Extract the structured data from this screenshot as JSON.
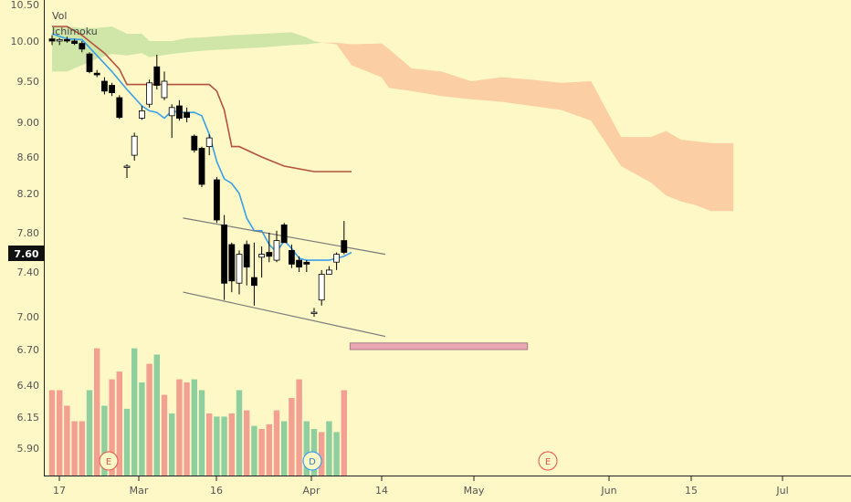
{
  "legend": {
    "vol_label": "Vol",
    "ichimoku_label": "Ichimoku"
  },
  "colors": {
    "background": "#fdf8c6",
    "up_volume": "#8fcf9f",
    "down_volume": "#f2a091",
    "tenkan": "#3aa0e8",
    "kijun": "#b5523c",
    "kumo_bull": "#cfe6a8",
    "kumo_bear": "#fbcfa3",
    "zone_fill": "#e9a7b6",
    "zone_stroke": "#a67a88",
    "trendline": "#7a7a7a"
  },
  "price_badge": "7.60",
  "chart_data": {
    "type": "candlestick",
    "y_ticks": [
      "10.50",
      "10.00",
      "9.50",
      "9.00",
      "8.60",
      "8.20",
      "7.80",
      "7.40",
      "7.00",
      "6.70",
      "6.40",
      "6.15",
      "5.90"
    ],
    "x_ticks": [
      "17",
      "Mar",
      "16",
      "Apr",
      "14",
      "May",
      "Jun",
      "15",
      "Jul"
    ],
    "events": [
      {
        "label": "E",
        "date": "Feb 26"
      },
      {
        "label": "D",
        "date": "Apr 1"
      },
      {
        "label": "E",
        "date": "May 20"
      }
    ],
    "candles": [
      {
        "date": "Feb 17",
        "open": 10.03,
        "high": 10.08,
        "low": 9.95,
        "close": 10.0
      },
      {
        "date": "Feb 18",
        "open": 10.0,
        "high": 10.04,
        "low": 9.95,
        "close": 10.02
      },
      {
        "date": "Feb 19",
        "open": 10.02,
        "high": 10.06,
        "low": 9.98,
        "close": 10.01
      },
      {
        "date": "Feb 20",
        "open": 10.0,
        "high": 10.03,
        "low": 9.95,
        "close": 9.97
      },
      {
        "date": "Feb 21",
        "open": 9.97,
        "high": 10.0,
        "low": 9.86,
        "close": 9.9
      },
      {
        "date": "Feb 24",
        "open": 9.84,
        "high": 9.86,
        "low": 9.6,
        "close": 9.62
      },
      {
        "date": "Feb 25",
        "open": 9.6,
        "high": 9.64,
        "low": 9.55,
        "close": 9.58
      },
      {
        "date": "Feb 26",
        "open": 9.5,
        "high": 9.55,
        "low": 9.34,
        "close": 9.38
      },
      {
        "date": "Feb 27",
        "open": 9.45,
        "high": 9.48,
        "low": 9.32,
        "close": 9.36
      },
      {
        "date": "Feb 28",
        "open": 9.3,
        "high": 9.33,
        "low": 9.04,
        "close": 9.06
      },
      {
        "date": "Mar 2",
        "open": 8.5,
        "high": 8.52,
        "low": 8.37,
        "close": 8.5
      },
      {
        "date": "Mar 3",
        "open": 8.62,
        "high": 8.88,
        "low": 8.56,
        "close": 8.84
      },
      {
        "date": "Mar 4",
        "open": 9.05,
        "high": 9.2,
        "low": 9.03,
        "close": 9.14
      },
      {
        "date": "Mar 5",
        "open": 9.22,
        "high": 9.52,
        "low": 9.18,
        "close": 9.48
      },
      {
        "date": "Mar 6",
        "open": 9.68,
        "high": 9.83,
        "low": 9.4,
        "close": 9.45
      },
      {
        "date": "Mar 9",
        "open": 9.3,
        "high": 9.62,
        "low": 9.27,
        "close": 9.5
      },
      {
        "date": "Mar 10",
        "open": 9.08,
        "high": 9.22,
        "low": 8.82,
        "close": 9.18
      },
      {
        "date": "Mar 11",
        "open": 9.2,
        "high": 9.27,
        "low": 9.02,
        "close": 9.05
      },
      {
        "date": "Mar 12",
        "open": 9.12,
        "high": 9.18,
        "low": 9.0,
        "close": 9.06
      },
      {
        "date": "Mar 13",
        "open": 8.84,
        "high": 8.86,
        "low": 8.65,
        "close": 8.68
      },
      {
        "date": "Mar 16",
        "open": 8.7,
        "high": 8.72,
        "low": 8.27,
        "close": 8.3
      },
      {
        "date": "Mar 17",
        "open": 8.72,
        "high": 8.86,
        "low": 8.62,
        "close": 8.82
      },
      {
        "date": "Mar 18",
        "open": 8.35,
        "high": 8.38,
        "low": 7.9,
        "close": 7.93
      },
      {
        "date": "Mar 19",
        "open": 7.88,
        "high": 7.98,
        "low": 7.15,
        "close": 7.3
      },
      {
        "date": "Mar 20",
        "open": 7.68,
        "high": 7.7,
        "low": 7.22,
        "close": 7.32
      },
      {
        "date": "Mar 23",
        "open": 7.3,
        "high": 7.62,
        "low": 7.2,
        "close": 7.58
      },
      {
        "date": "Mar 24",
        "open": 7.68,
        "high": 7.72,
        "low": 7.28,
        "close": 7.45
      },
      {
        "date": "Mar 25",
        "open": 7.35,
        "high": 7.7,
        "low": 7.1,
        "close": 7.28
      },
      {
        "date": "Mar 26",
        "open": 7.55,
        "high": 7.66,
        "low": 7.35,
        "close": 7.58
      },
      {
        "date": "Mar 27",
        "open": 7.6,
        "high": 7.8,
        "low": 7.5,
        "close": 7.56
      },
      {
        "date": "Mar 30",
        "open": 7.52,
        "high": 7.82,
        "low": 7.5,
        "close": 7.72
      },
      {
        "date": "Mar 31",
        "open": 7.88,
        "high": 7.9,
        "low": 7.7,
        "close": 7.7
      },
      {
        "date": "Apr 1",
        "open": 7.62,
        "high": 7.68,
        "low": 7.44,
        "close": 7.48
      },
      {
        "date": "Apr 2",
        "open": 7.52,
        "high": 7.56,
        "low": 7.4,
        "close": 7.45
      },
      {
        "date": "Apr 3",
        "open": 7.5,
        "high": 7.52,
        "low": 7.4,
        "close": 7.48
      },
      {
        "date": "Apr 6",
        "open": 7.04,
        "high": 7.08,
        "low": 7.0,
        "close": 7.04
      },
      {
        "date": "Apr 7",
        "open": 7.15,
        "high": 7.42,
        "low": 7.1,
        "close": 7.38
      },
      {
        "date": "Apr 8",
        "open": 7.38,
        "high": 7.46,
        "low": 7.38,
        "close": 7.42
      },
      {
        "date": "Apr 9",
        "open": 7.5,
        "high": 7.6,
        "low": 7.42,
        "close": 7.58
      },
      {
        "date": "Apr 10",
        "open": 7.72,
        "high": 7.92,
        "low": 7.58,
        "close": 7.6
      }
    ],
    "volume": [
      [
        0.55,
        "d"
      ],
      [
        0.55,
        "d"
      ],
      [
        0.45,
        "d"
      ],
      [
        0.35,
        "d"
      ],
      [
        0.35,
        "d"
      ],
      [
        0.55,
        "u"
      ],
      [
        0.82,
        "d"
      ],
      [
        0.45,
        "u"
      ],
      [
        0.62,
        "d"
      ],
      [
        0.67,
        "d"
      ],
      [
        0.43,
        "u"
      ],
      [
        0.82,
        "u"
      ],
      [
        0.6,
        "u"
      ],
      [
        0.72,
        "d"
      ],
      [
        0.78,
        "u"
      ],
      [
        0.52,
        "d"
      ],
      [
        0.4,
        "u"
      ],
      [
        0.62,
        "d"
      ],
      [
        0.6,
        "d"
      ],
      [
        0.62,
        "u"
      ],
      [
        0.55,
        "u"
      ],
      [
        0.4,
        "d"
      ],
      [
        0.38,
        "u"
      ],
      [
        0.38,
        "u"
      ],
      [
        0.4,
        "d"
      ],
      [
        0.55,
        "u"
      ],
      [
        0.42,
        "d"
      ],
      [
        0.32,
        "u"
      ],
      [
        0.3,
        "d"
      ],
      [
        0.33,
        "d"
      ],
      [
        0.42,
        "d"
      ],
      [
        0.35,
        "u"
      ],
      [
        0.5,
        "d"
      ],
      [
        0.62,
        "d"
      ],
      [
        0.35,
        "u"
      ],
      [
        0.3,
        "u"
      ],
      [
        0.28,
        "d"
      ],
      [
        0.35,
        "u"
      ],
      [
        0.28,
        "u"
      ],
      [
        0.55,
        "d"
      ]
    ],
    "kijun": [
      [
        0,
        10.2
      ],
      [
        2,
        10.2
      ],
      [
        4,
        10.08
      ],
      [
        7,
        9.85
      ],
      [
        9,
        9.65
      ],
      [
        10,
        9.46
      ],
      [
        14,
        9.46
      ],
      [
        21,
        9.46
      ],
      [
        22,
        9.38
      ],
      [
        23,
        9.15
      ],
      [
        24,
        8.72
      ],
      [
        25,
        8.72
      ],
      [
        28,
        8.6
      ],
      [
        31,
        8.5
      ],
      [
        35,
        8.44
      ],
      [
        40,
        8.44
      ]
    ],
    "tenkan": [
      [
        0,
        10.1
      ],
      [
        2,
        10.03
      ],
      [
        4,
        10.02
      ],
      [
        6,
        9.82
      ],
      [
        8,
        9.62
      ],
      [
        10,
        9.4
      ],
      [
        11,
        9.3
      ],
      [
        12,
        9.2
      ],
      [
        13,
        9.14
      ],
      [
        14,
        9.12
      ],
      [
        15,
        9.05
      ],
      [
        16,
        9.14
      ],
      [
        17,
        9.12
      ],
      [
        19,
        9.12
      ],
      [
        20,
        9.08
      ],
      [
        21,
        8.86
      ],
      [
        22,
        8.55
      ],
      [
        23,
        8.36
      ],
      [
        24,
        8.31
      ],
      [
        25,
        8.2
      ],
      [
        26,
        7.95
      ],
      [
        27,
        7.82
      ],
      [
        28,
        7.82
      ],
      [
        29,
        7.68
      ],
      [
        30,
        7.6
      ],
      [
        31,
        7.72
      ],
      [
        32,
        7.64
      ],
      [
        33,
        7.54
      ],
      [
        34,
        7.52
      ],
      [
        35,
        7.52
      ],
      [
        37,
        7.52
      ],
      [
        38,
        7.54
      ],
      [
        39,
        7.56
      ],
      [
        40,
        7.6
      ]
    ],
    "kumo_bull": {
      "upper": [
        [
          0,
          10.2
        ],
        [
          2,
          10.2
        ],
        [
          4,
          10.18
        ],
        [
          6,
          10.18
        ],
        [
          8,
          10.2
        ],
        [
          10,
          10.1
        ],
        [
          12,
          10.1
        ],
        [
          13,
          10.0
        ],
        [
          16,
          10.0
        ],
        [
          18,
          10.04
        ],
        [
          20,
          10.05
        ],
        [
          24,
          10.08
        ],
        [
          28,
          10.1
        ],
        [
          32,
          10.12
        ],
        [
          34,
          10.05
        ],
        [
          35,
          10.0
        ],
        [
          36,
          9.98
        ]
      ],
      "lower": [
        [
          0,
          9.62
        ],
        [
          2,
          9.62
        ],
        [
          4,
          9.7
        ],
        [
          6,
          9.78
        ],
        [
          8,
          9.84
        ],
        [
          10,
          9.82
        ],
        [
          12,
          9.85
        ],
        [
          13,
          9.8
        ],
        [
          16,
          9.84
        ],
        [
          18,
          9.86
        ],
        [
          20,
          9.88
        ],
        [
          24,
          9.9
        ],
        [
          28,
          9.92
        ],
        [
          32,
          9.95
        ],
        [
          34,
          9.96
        ],
        [
          35,
          9.97
        ],
        [
          36,
          9.98
        ]
      ]
    },
    "kumo_bear": {
      "upper": [
        [
          36,
          9.98
        ],
        [
          38,
          9.98
        ],
        [
          40,
          9.96
        ],
        [
          44,
          9.97
        ],
        [
          45,
          9.9
        ],
        [
          48,
          9.66
        ],
        [
          52,
          9.62
        ],
        [
          56,
          9.5
        ],
        [
          60,
          9.55
        ],
        [
          64,
          9.52
        ],
        [
          68,
          9.48
        ],
        [
          72,
          9.5
        ],
        [
          76,
          8.83
        ],
        [
          80,
          8.83
        ],
        [
          82,
          8.9
        ],
        [
          84,
          8.8
        ],
        [
          86,
          8.78
        ],
        [
          88,
          8.76
        ],
        [
          91,
          8.76
        ]
      ],
      "lower": [
        [
          36,
          9.98
        ],
        [
          38,
          9.96
        ],
        [
          40,
          9.7
        ],
        [
          44,
          9.55
        ],
        [
          45,
          9.42
        ],
        [
          48,
          9.38
        ],
        [
          52,
          9.32
        ],
        [
          56,
          9.28
        ],
        [
          60,
          9.25
        ],
        [
          64,
          9.2
        ],
        [
          68,
          9.15
        ],
        [
          72,
          9.02
        ],
        [
          76,
          8.5
        ],
        [
          80,
          8.32
        ],
        [
          82,
          8.18
        ],
        [
          84,
          8.12
        ],
        [
          86,
          8.08
        ],
        [
          88,
          8.02
        ],
        [
          91,
          8.02
        ]
      ]
    },
    "trendlines": [
      {
        "start": [
          17.5,
          7.95
        ],
        "end": [
          44.5,
          7.58
        ]
      },
      {
        "start": [
          17.5,
          7.22
        ],
        "end": [
          44.5,
          6.82
        ]
      }
    ],
    "zone": {
      "x_start": 39.8,
      "x_end": 63.5,
      "y_low": 6.7,
      "y_high": 6.76
    }
  }
}
